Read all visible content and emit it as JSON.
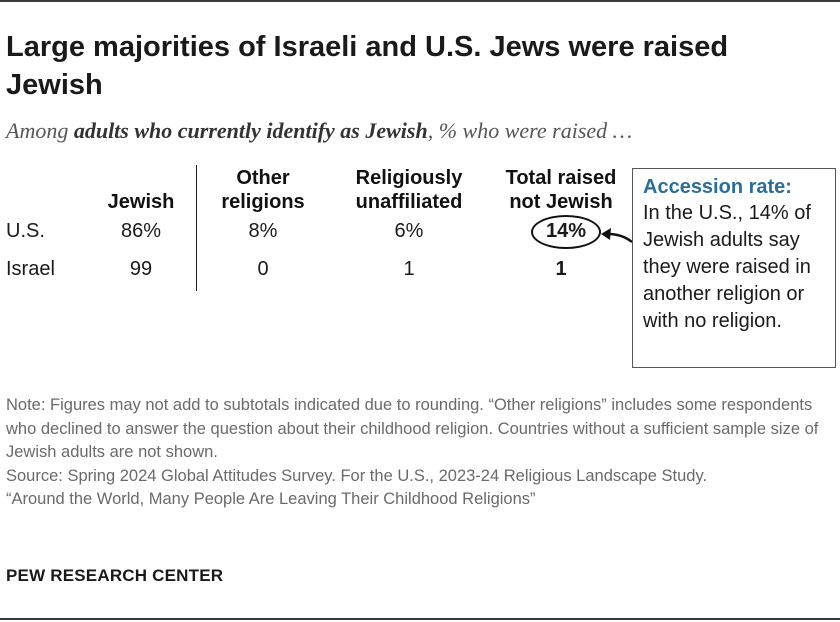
{
  "title": "Large majorities of Israeli and U.S. Jews were raised Jewish",
  "subtitle": {
    "pre": "Among ",
    "bold": "adults who currently identify as Jewish",
    "post": ", % who were raised …"
  },
  "chart_data": {
    "type": "table",
    "columns": [
      {
        "line1": "",
        "line2": "Jewish"
      },
      {
        "line1": "Other",
        "line2": "religions"
      },
      {
        "line1": "Religiously",
        "line2": "unaffiliated"
      },
      {
        "line1": "Total raised",
        "line2": "not Jewish"
      }
    ],
    "rows": [
      {
        "label": "U.S.",
        "values": [
          "86%",
          "8%",
          "6%",
          "14%"
        ]
      },
      {
        "label": "Israel",
        "values": [
          "99",
          "0",
          "1",
          "1"
        ]
      }
    ]
  },
  "callout": {
    "title": "Accession rate:",
    "body": "In the U.S., 14% of Jewish adults say they were raised in another religion or with no religion."
  },
  "note": {
    "line1": "Note: Figures may not add to subtotals indicated due to rounding. “Other religions” includes some respondents who declined to answer the question about their childhood religion. Countries without a sufficient sample size of Jewish adults are not shown.",
    "line2": "Source: Spring 2024 Global Attitudes Survey. For the U.S., 2023-24 Religious Landscape Study.",
    "line3": "“Around the World, Many People Are Leaving Their Childhood Religions”"
  },
  "brand": "PEW RESEARCH CENTER",
  "colors": {
    "accent": "#2a6e9a",
    "text": "#1a1a1a",
    "note": "#6a6a6a"
  }
}
